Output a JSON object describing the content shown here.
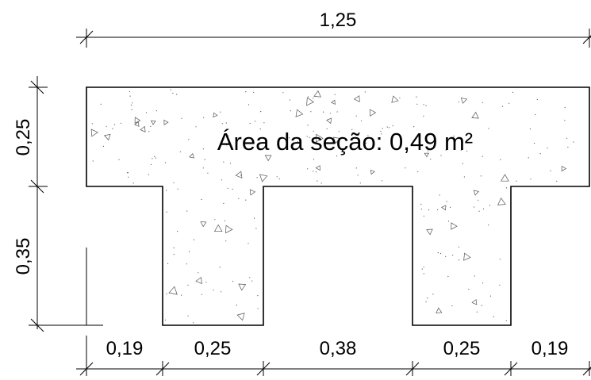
{
  "section": {
    "area_label": "Área da seção: 0,49 m²",
    "fill_pattern": "concrete-hatch"
  },
  "dimensions": {
    "top": "1,25",
    "left_top": "0,25",
    "left_bottom": "0,35",
    "bottom": [
      "0,19",
      "0,25",
      "0,38",
      "0,25",
      "0,19"
    ]
  },
  "colors": {
    "line": "#000000",
    "background": "#ffffff",
    "hatch": "#555555"
  }
}
